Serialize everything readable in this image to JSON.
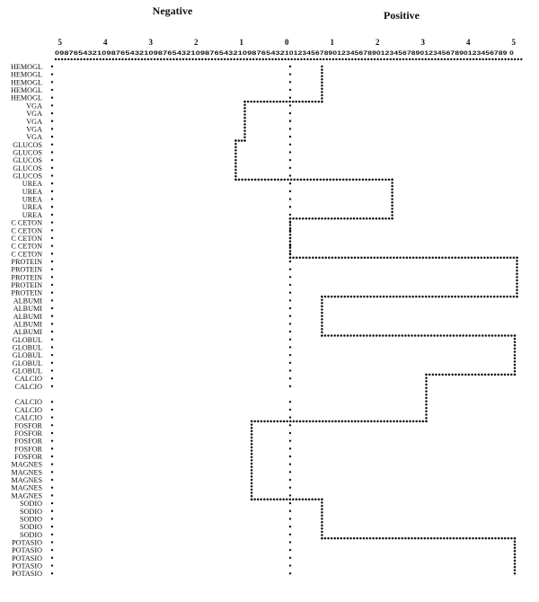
{
  "chart_data": {
    "type": "line",
    "title": "",
    "side_labels": {
      "negative": "Negative",
      "positive": "Positive"
    },
    "major_ticks": [
      "5",
      "4",
      "3",
      "2",
      "1",
      "0",
      "1",
      "2",
      "3",
      "4",
      "5"
    ],
    "minor_digits_negative": "0987654321098765432109876543210987654321098765432",
    "minor_digits_positive": "101234567890123456789012345678901234567890123456789 0",
    "xlim": [
      -5,
      5
    ],
    "rows": [
      "HEMOGL",
      "HEMOGL",
      "HEMOGL",
      "HEMOGL",
      "HEMOGL",
      "VGA",
      "VGA",
      "VGA",
      "VGA",
      "VGA",
      "GLUCOS",
      "GLUCOS",
      "GLUCOS",
      "GLUCOS",
      "GLUCOS",
      "UREA",
      "UREA",
      "UREA",
      "UREA",
      "UREA",
      "C CETON",
      "C CETON",
      "C CETON",
      "C CETON",
      "C CETON",
      "PROTEIN",
      "PROTEIN",
      "PROTEIN",
      "PROTEIN",
      "PROTEIN",
      "ALBUMI",
      "ALBUMI",
      "ALBUMI",
      "ALBUMI",
      "ALBUMI",
      "GLOBUL",
      "GLOBUL",
      "GLOBUL",
      "GLOBUL",
      "GLOBUL",
      "CALCIO",
      "CALCIO",
      "",
      "CALCIO",
      "CALCIO",
      "CALCIO",
      "FOSFOR",
      "FOSFOR",
      "FOSFOR",
      "FOSFOR",
      "FOSFOR",
      "MAGNES",
      "MAGNES",
      "MAGNES",
      "MAGNES",
      "MAGNES",
      "SODIO",
      "SODIO",
      "SODIO",
      "SODIO",
      "SODIO",
      "POTASIO",
      "POTASIO",
      "POTASIO",
      "POTASIO",
      "POTASIO"
    ],
    "series": [
      {
        "category": "HEMOGL",
        "value": 0.7
      },
      {
        "category": "VGA",
        "value": -1.0
      },
      {
        "category": "GLUCOS",
        "value": -1.2
      },
      {
        "category": "UREA",
        "value": 2.25
      },
      {
        "category": "C CETON",
        "value": 0.0
      },
      {
        "category": "PROTEIN",
        "value": 5.0
      },
      {
        "category": "ALBUMI",
        "value": 0.7
      },
      {
        "category": "GLOBUL",
        "value": 4.95
      },
      {
        "category": "CALCIO",
        "value": 3.0
      },
      {
        "category": "FOSFOR",
        "value": -0.85
      },
      {
        "category": "MAGNES",
        "value": -0.85
      },
      {
        "category": "SODIO",
        "value": 0.7
      },
      {
        "category": "POTASIO",
        "value": 4.95
      }
    ]
  }
}
